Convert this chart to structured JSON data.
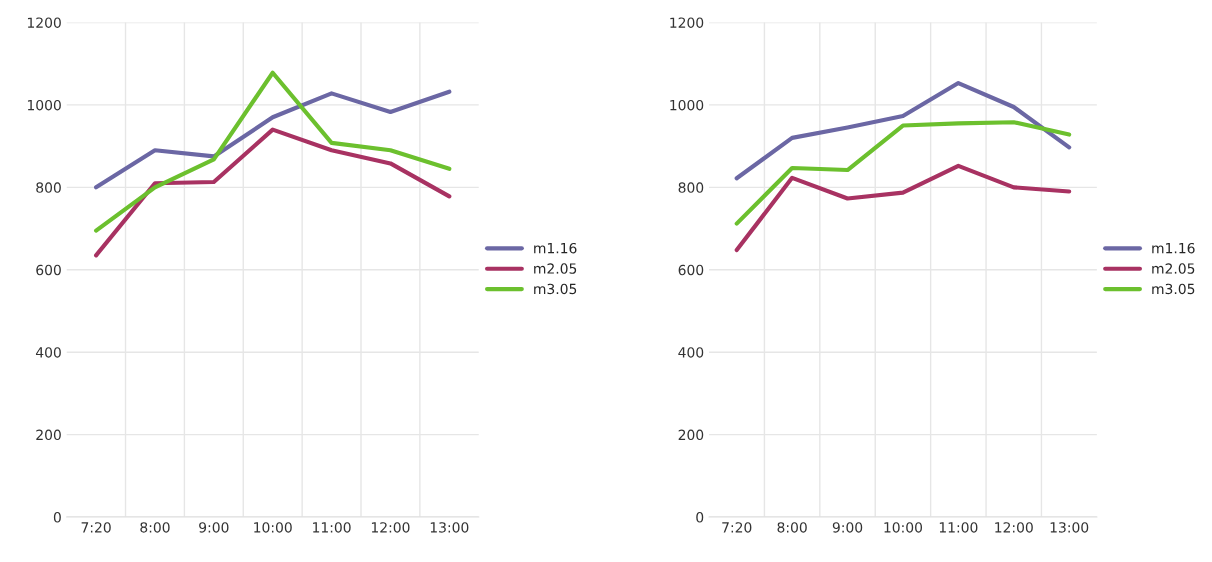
{
  "chart_data": [
    {
      "type": "line",
      "categories": [
        "7:20",
        "8:00",
        "9:00",
        "10:00",
        "11:00",
        "12:00",
        "13:00"
      ],
      "ylim": [
        0,
        1200
      ],
      "yticks": [
        0,
        200,
        400,
        600,
        800,
        1000,
        1200
      ],
      "grid": true,
      "legend": "right",
      "series": [
        {
          "name": "m1.16",
          "color": "#6b67a4",
          "values": [
            800,
            890,
            875,
            970,
            1028,
            983,
            1032
          ]
        },
        {
          "name": "m2.05",
          "color": "#a83262",
          "values": [
            635,
            810,
            813,
            940,
            890,
            858,
            778
          ]
        },
        {
          "name": "m3.05",
          "color": "#6cc02e",
          "values": [
            695,
            800,
            868,
            1078,
            908,
            890,
            845
          ]
        }
      ]
    },
    {
      "type": "line",
      "categories": [
        "7:20",
        "8:00",
        "9:00",
        "10:00",
        "11:00",
        "12:00",
        "13:00"
      ],
      "ylim": [
        0,
        1200
      ],
      "yticks": [
        0,
        200,
        400,
        600,
        800,
        1000,
        1200
      ],
      "grid": true,
      "legend": "right",
      "series": [
        {
          "name": "m1.16",
          "color": "#6b67a4",
          "values": [
            822,
            920,
            945,
            973,
            1053,
            995,
            897
          ]
        },
        {
          "name": "m2.05",
          "color": "#a83262",
          "values": [
            648,
            823,
            773,
            787,
            852,
            800,
            790
          ]
        },
        {
          "name": "m3.05",
          "color": "#6cc02e",
          "values": [
            712,
            847,
            842,
            950,
            955,
            958,
            928
          ]
        }
      ]
    }
  ]
}
